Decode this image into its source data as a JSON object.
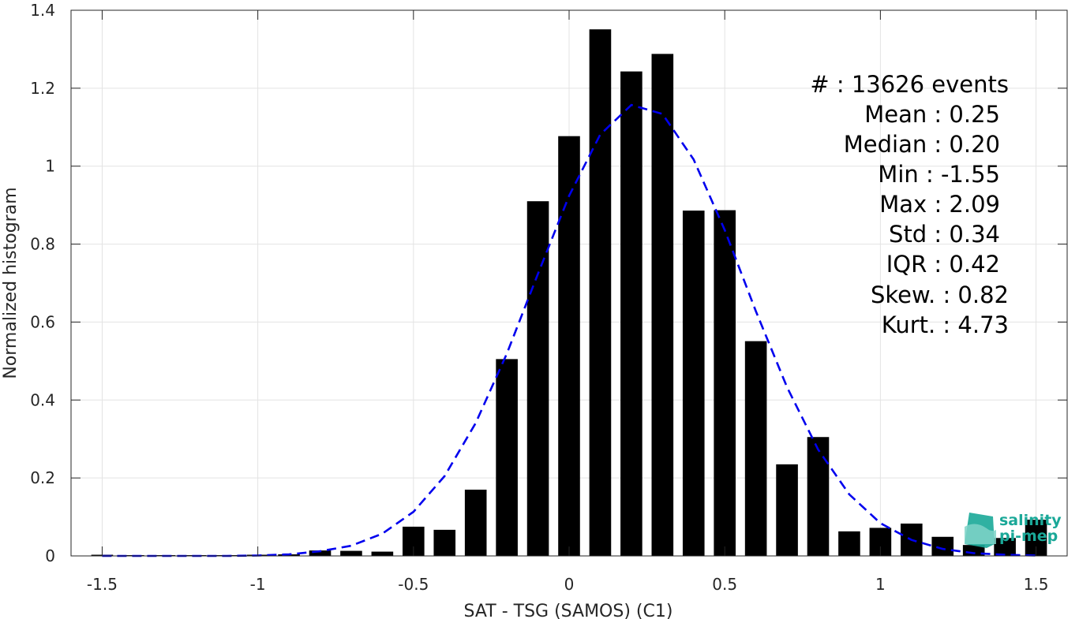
{
  "chart_data": {
    "type": "bar",
    "xlabel": "SAT - TSG (SAMOS) (C1)",
    "ylabel": "Normalized histogram",
    "xlim": [
      -1.6,
      1.6
    ],
    "ylim": [
      0,
      1.4
    ],
    "xticks": [
      "-1.5",
      "-1",
      "-0.5",
      "0",
      "0.5",
      "1",
      "1.5"
    ],
    "xtick_values": [
      -1.5,
      -1,
      -0.5,
      0,
      0.5,
      1,
      1.5
    ],
    "yticks": [
      "0",
      "0.2",
      "0.4",
      "0.6",
      "0.8",
      "1",
      "1.2",
      "1.4"
    ],
    "ytick_values": [
      0,
      0.2,
      0.4,
      0.6,
      0.8,
      1.0,
      1.2,
      1.4
    ],
    "grid": true,
    "bar_width": 0.07,
    "bar_color": "#000000",
    "bars": {
      "x": [
        -1.5,
        -1.4,
        -1.3,
        -1.2,
        -1.1,
        -1.0,
        -0.9,
        -0.8,
        -0.7,
        -0.6,
        -0.5,
        -0.4,
        -0.3,
        -0.2,
        -0.1,
        0.0,
        0.1,
        0.2,
        0.3,
        0.4,
        0.5,
        0.6,
        0.7,
        0.8,
        0.9,
        1.0,
        1.1,
        1.2,
        1.3,
        1.4,
        1.5
      ],
      "values": [
        0.003,
        0.002,
        0.002,
        0.002,
        0.002,
        0.003,
        0.004,
        0.014,
        0.013,
        0.011,
        0.075,
        0.067,
        0.17,
        0.505,
        0.91,
        1.077,
        1.351,
        1.243,
        1.288,
        0.886,
        0.887,
        0.551,
        0.235,
        0.305,
        0.063,
        0.072,
        0.083,
        0.049,
        0.028,
        0.046,
        0.093
      ]
    },
    "fit_curve": {
      "style": "dashed",
      "color": "#0000ee",
      "x": [
        -1.5,
        -1.4,
        -1.3,
        -1.2,
        -1.1,
        -1.0,
        -0.9,
        -0.8,
        -0.7,
        -0.6,
        -0.5,
        -0.4,
        -0.3,
        -0.2,
        -0.1,
        0.0,
        0.1,
        0.2,
        0.3,
        0.4,
        0.5,
        0.6,
        0.7,
        0.8,
        0.9,
        1.0,
        1.1,
        1.2,
        1.3,
        1.4,
        1.5
      ],
      "values": [
        0.0,
        0.0,
        0.0,
        0.0,
        0.0,
        0.001,
        0.004,
        0.012,
        0.026,
        0.057,
        0.113,
        0.205,
        0.341,
        0.519,
        0.724,
        0.924,
        1.081,
        1.157,
        1.134,
        1.017,
        0.836,
        0.628,
        0.433,
        0.273,
        0.158,
        0.084,
        0.041,
        0.018,
        0.007,
        0.003,
        0.001
      ]
    },
    "annotations": [
      "#  : 13626 events",
      "Mean : 0.25",
      "Median : 0.20",
      "Min : -1.55",
      "Max : 2.09",
      "Std : 0.34",
      "IQR : 0.42",
      "Skew. : 0.82",
      "Kurt. : 4.73"
    ]
  },
  "logo": {
    "line1": "salinity",
    "line2": "pi-mep",
    "color": "#1aa898"
  }
}
